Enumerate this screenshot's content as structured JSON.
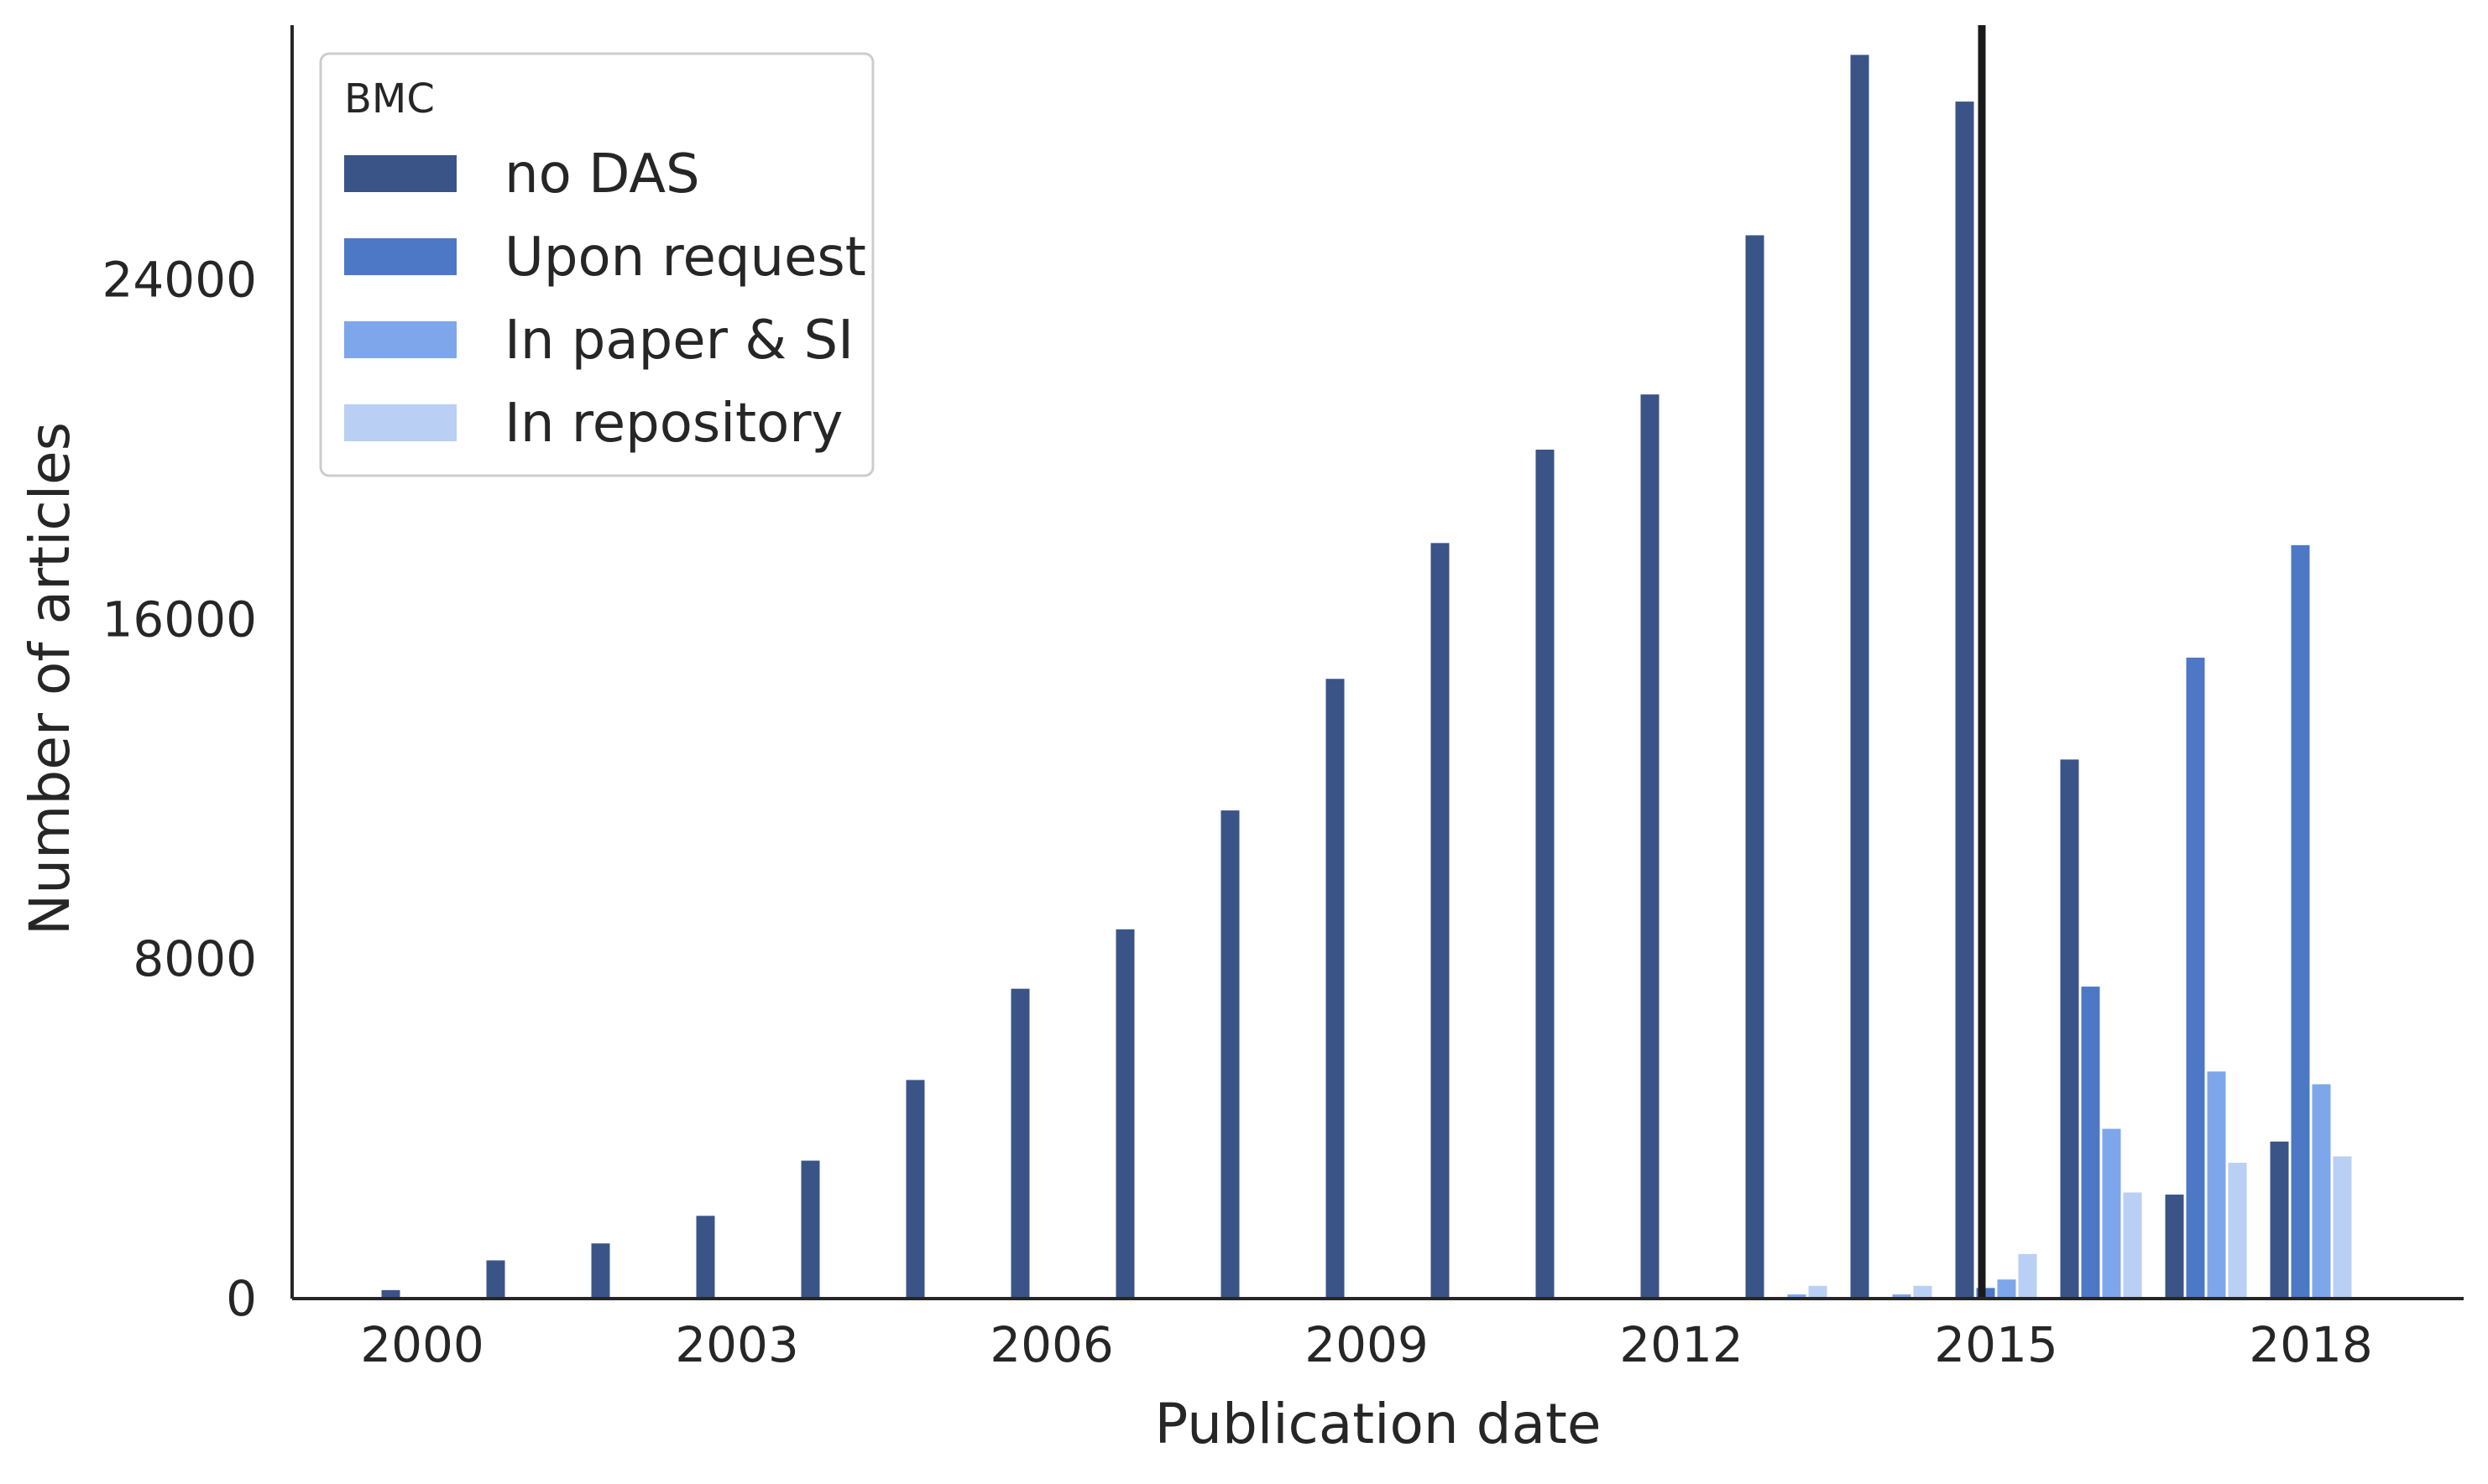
{
  "chart_data": {
    "type": "bar",
    "xlabel": "Publication date",
    "ylabel": "Number of articles",
    "ylim": [
      0,
      30000
    ],
    "yticks": [
      0,
      8000,
      16000,
      24000
    ],
    "ytick_labels": [
      "0",
      "8000",
      "16000",
      "24000"
    ],
    "xtick_labels": [
      "2000",
      "2003",
      "2006",
      "2009",
      "2012",
      "2015",
      "2018"
    ],
    "xtick_years": [
      2000,
      2003,
      2006,
      2009,
      2012,
      2015,
      2018
    ],
    "categories": [
      2000,
      2001,
      2002,
      2003,
      2004,
      2005,
      2006,
      2007,
      2008,
      2009,
      2010,
      2011,
      2012,
      2013,
      2014,
      2015,
      2016,
      2017,
      2018
    ],
    "series": [
      {
        "name": "no DAS",
        "color": "#3a5487",
        "values": [
          200,
          900,
          1300,
          1950,
          3250,
          5150,
          7300,
          8700,
          11500,
          14600,
          17800,
          20000,
          21300,
          25050,
          29300,
          28200,
          12700,
          2450,
          3700
        ]
      },
      {
        "name": "Upon request",
        "color": "#4d78c5",
        "values": [
          0,
          0,
          0,
          0,
          0,
          0,
          0,
          0,
          0,
          0,
          0,
          0,
          0,
          0,
          0,
          250,
          7350,
          15100,
          17750
        ]
      },
      {
        "name": "In paper & SI",
        "color": "#7da7ea",
        "values": [
          0,
          0,
          0,
          0,
          0,
          0,
          0,
          0,
          0,
          0,
          0,
          0,
          0,
          100,
          100,
          450,
          4000,
          5350,
          5050
        ]
      },
      {
        "name": "In repository",
        "color": "#b9cff4",
        "values": [
          0,
          0,
          0,
          0,
          0,
          0,
          0,
          0,
          0,
          0,
          0,
          0,
          0,
          300,
          300,
          1050,
          2500,
          3200,
          3350
        ]
      }
    ],
    "legend": {
      "title": "BMC",
      "placement": "top-left"
    },
    "vertical_line": {
      "position": 2015,
      "color": "#1a1a1a"
    },
    "grid": false
  }
}
